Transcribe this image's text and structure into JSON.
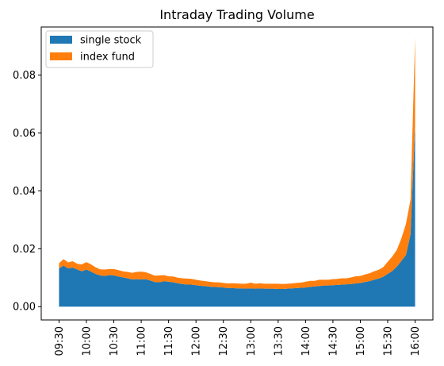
{
  "chart_data": {
    "type": "area",
    "title": "Intraday Trading Volume",
    "xlabel": "",
    "ylabel": "",
    "x": [
      "09:30",
      "09:35",
      "09:40",
      "09:45",
      "09:50",
      "09:55",
      "10:00",
      "10:05",
      "10:10",
      "10:15",
      "10:20",
      "10:25",
      "10:30",
      "10:35",
      "10:40",
      "10:45",
      "10:50",
      "10:55",
      "11:00",
      "11:05",
      "11:10",
      "11:15",
      "11:20",
      "11:25",
      "11:30",
      "11:35",
      "11:40",
      "11:45",
      "11:50",
      "11:55",
      "12:00",
      "12:05",
      "12:10",
      "12:15",
      "12:20",
      "12:25",
      "12:30",
      "12:35",
      "12:40",
      "12:45",
      "12:50",
      "12:55",
      "13:00",
      "13:05",
      "13:10",
      "13:15",
      "13:20",
      "13:25",
      "13:30",
      "13:35",
      "13:40",
      "13:45",
      "13:50",
      "13:55",
      "14:00",
      "14:05",
      "14:10",
      "14:15",
      "14:20",
      "14:25",
      "14:30",
      "14:35",
      "14:40",
      "14:45",
      "14:50",
      "14:55",
      "15:00",
      "15:05",
      "15:10",
      "15:15",
      "15:20",
      "15:25",
      "15:30",
      "15:35",
      "15:40",
      "15:45",
      "15:50",
      "15:55",
      "16:00"
    ],
    "xticks": [
      "09:30",
      "10:00",
      "10:30",
      "11:00",
      "11:30",
      "12:00",
      "12:30",
      "13:00",
      "13:30",
      "14:00",
      "14:30",
      "15:00",
      "15:30",
      "16:00"
    ],
    "yticks": [
      "0.00",
      "0.02",
      "0.04",
      "0.06",
      "0.08"
    ],
    "ylim": [
      -0.0046,
      0.0966
    ],
    "grid": false,
    "legend_position": "top-left",
    "series": [
      {
        "name": "single stock",
        "color": "#1f77b4",
        "values": [
          0.0132,
          0.0142,
          0.0132,
          0.0135,
          0.0128,
          0.0122,
          0.0128,
          0.0121,
          0.0113,
          0.0108,
          0.0106,
          0.0109,
          0.0108,
          0.0104,
          0.0101,
          0.0098,
          0.0094,
          0.0095,
          0.0094,
          0.0095,
          0.009,
          0.0085,
          0.0084,
          0.0088,
          0.0086,
          0.0084,
          0.0081,
          0.0078,
          0.0076,
          0.0076,
          0.0074,
          0.0072,
          0.0071,
          0.0069,
          0.0068,
          0.0067,
          0.0066,
          0.0064,
          0.0064,
          0.0063,
          0.0063,
          0.0062,
          0.0063,
          0.0062,
          0.0063,
          0.0062,
          0.0062,
          0.0062,
          0.0061,
          0.0061,
          0.0062,
          0.0063,
          0.0064,
          0.0065,
          0.0066,
          0.0068,
          0.007,
          0.0071,
          0.0073,
          0.0073,
          0.0074,
          0.0075,
          0.0076,
          0.0077,
          0.0078,
          0.008,
          0.0082,
          0.0085,
          0.0088,
          0.0093,
          0.0097,
          0.0103,
          0.0113,
          0.0123,
          0.0138,
          0.0158,
          0.0178,
          0.025,
          0.063
        ]
      },
      {
        "name": "index fund",
        "color": "#ff7f0e",
        "values": [
          0.0018,
          0.0022,
          0.0021,
          0.0022,
          0.002,
          0.0024,
          0.0026,
          0.0025,
          0.0023,
          0.0021,
          0.0022,
          0.0021,
          0.0022,
          0.0022,
          0.0021,
          0.0022,
          0.0023,
          0.0025,
          0.0027,
          0.0024,
          0.0023,
          0.0022,
          0.0024,
          0.0021,
          0.0019,
          0.002,
          0.0019,
          0.002,
          0.0021,
          0.002,
          0.0019,
          0.0018,
          0.0017,
          0.0017,
          0.0016,
          0.0017,
          0.0016,
          0.0016,
          0.0017,
          0.0017,
          0.0016,
          0.0017,
          0.002,
          0.0017,
          0.0018,
          0.0017,
          0.0017,
          0.0017,
          0.0018,
          0.0017,
          0.0017,
          0.0017,
          0.0018,
          0.0018,
          0.002,
          0.0021,
          0.0019,
          0.0022,
          0.002,
          0.002,
          0.0021,
          0.0021,
          0.0022,
          0.0021,
          0.0023,
          0.0025,
          0.0024,
          0.0026,
          0.0027,
          0.0029,
          0.003,
          0.0033,
          0.0042,
          0.005,
          0.0058,
          0.0078,
          0.0108,
          0.012,
          0.03
        ]
      }
    ]
  }
}
